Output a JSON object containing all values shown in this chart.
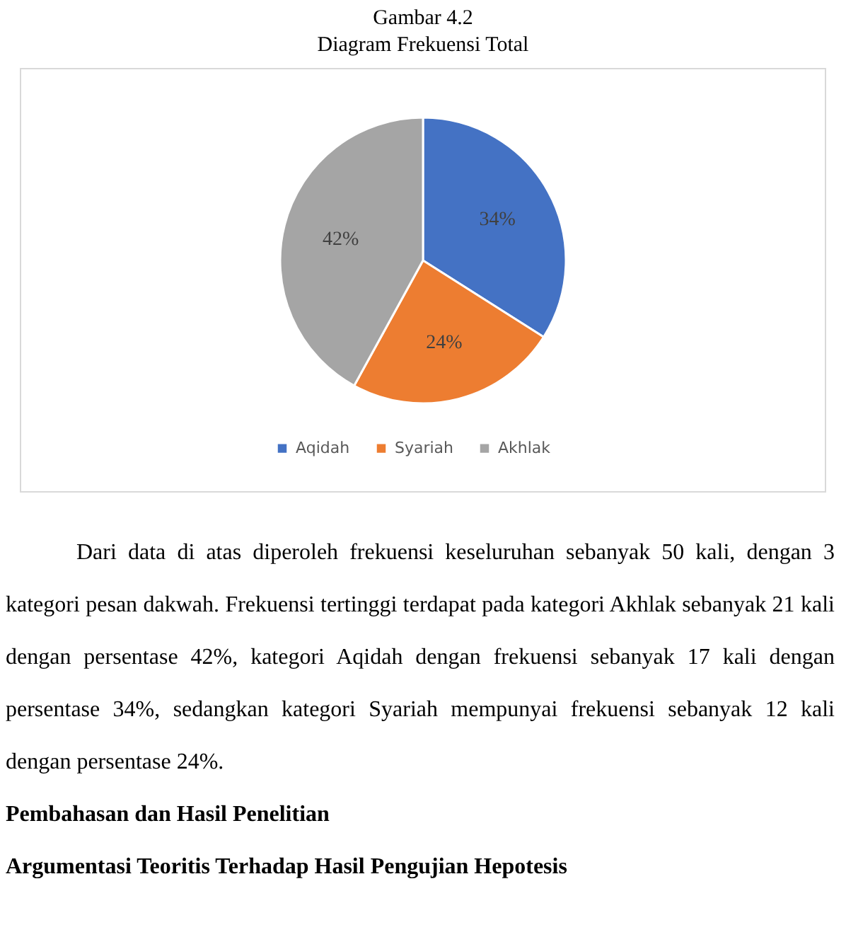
{
  "chart_data": {
    "type": "pie",
    "title": "Gambar 4.2",
    "subtitle": "Diagram Frekuensi Total",
    "categories": [
      "Aqidah",
      "Syariah",
      "Akhlak"
    ],
    "values": [
      34,
      24,
      42
    ],
    "colors": [
      "#4472c4",
      "#ed7d31",
      "#a5a5a5"
    ],
    "value_labels": [
      "34%",
      "24%",
      "42%"
    ],
    "legend": "bottom",
    "annotations": [
      "Dari data di atas diperoleh frekuensi keseluruhan sebanyak 50 kali, dengan 3 kategori pesan dakwah. Frekuensi tertinggi terdapat pada kategori Akhlak sebanyak 21 kali dengan persentase 42%, kategori Aqidah dengan frekuensi sebanyak 17 kali dengan persentase 34%, sedangkan kategori Syariah mempunyai frekuensi sebanyak 12 kali dengan persentase 24%.",
      "Pembahasan dan Hasil Penelitian",
      "Argumentasi Teoritis Terhadap Hasil Pengujian Hepotesis"
    ]
  }
}
